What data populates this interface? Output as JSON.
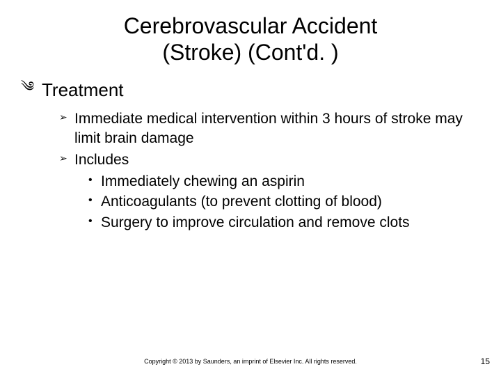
{
  "title_line1": "Cerebrovascular Accident",
  "title_line2": "(Stroke) (Cont'd. )",
  "lvl1_bullet": "༄",
  "lvl2_bullet": "➢",
  "lvl3_bullet": "•",
  "section": {
    "heading": "Treatment",
    "items": [
      {
        "text": "Immediate medical intervention within 3 hours of stroke may limit brain damage"
      },
      {
        "text": "Includes",
        "sub": [
          "Immediately chewing an aspirin",
          "Anticoagulants (to prevent clotting of blood)",
          "Surgery to improve circulation and remove clots"
        ]
      }
    ]
  },
  "footer": "Copyright © 2013 by Saunders, an imprint of Elsevier Inc. All rights reserved.",
  "page_number": "15",
  "colors": {
    "background": "#ffffff",
    "text": "#000000"
  },
  "typography": {
    "title_fontsize": 32,
    "lvl1_fontsize": 26,
    "lvl2_fontsize": 21,
    "lvl3_fontsize": 21,
    "footer_fontsize": 9,
    "pagenum_fontsize": 12,
    "font_family": "Arial"
  }
}
